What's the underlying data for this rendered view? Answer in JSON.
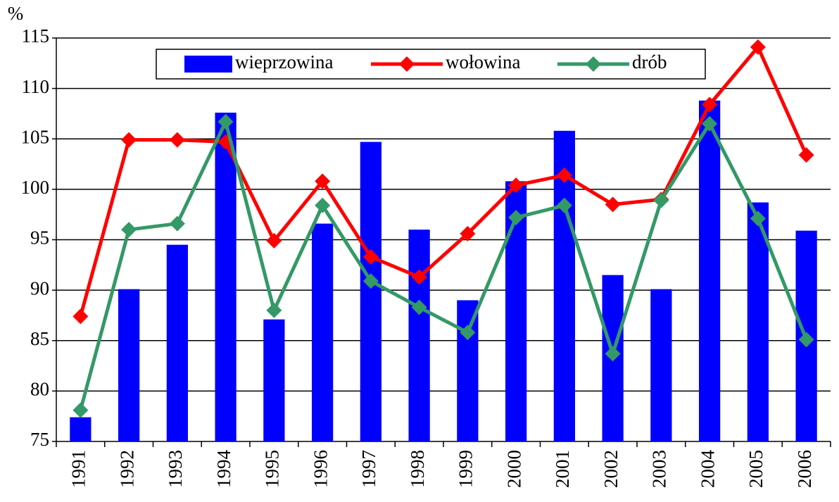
{
  "chart_data": {
    "type": "bar-line",
    "y_label": "%",
    "categories": [
      "1991",
      "1992",
      "1993",
      "1994",
      "1995",
      "1996",
      "1997",
      "1998",
      "1999",
      "2000",
      "2001",
      "2002",
      "2003",
      "2004",
      "2005",
      "2006"
    ],
    "series": [
      {
        "name": "wieprzowina",
        "type": "bar",
        "color": "#0000ff",
        "values": [
          77.4,
          90.1,
          94.5,
          107.6,
          87.1,
          96.6,
          104.7,
          96.0,
          89.0,
          100.8,
          105.8,
          91.5,
          90.1,
          108.8,
          98.7,
          95.9
        ]
      },
      {
        "name": "wołowina",
        "type": "line",
        "color": "#ff0000",
        "values": [
          87.4,
          104.9,
          104.9,
          104.7,
          94.9,
          100.8,
          93.3,
          91.3,
          95.6,
          100.4,
          101.4,
          98.5,
          99.0,
          108.4,
          114.1,
          103.4
        ]
      },
      {
        "name": "drób",
        "type": "line",
        "color": "#339966",
        "values": [
          78.1,
          96.0,
          96.6,
          106.7,
          88.0,
          98.4,
          90.9,
          88.3,
          85.8,
          97.2,
          98.4,
          83.7,
          98.9,
          106.5,
          97.1,
          85.1
        ]
      }
    ],
    "ylim": [
      75,
      115
    ],
    "yticks": [
      75,
      80,
      85,
      90,
      95,
      100,
      105,
      110,
      115
    ],
    "grid": true,
    "legend": "top"
  }
}
